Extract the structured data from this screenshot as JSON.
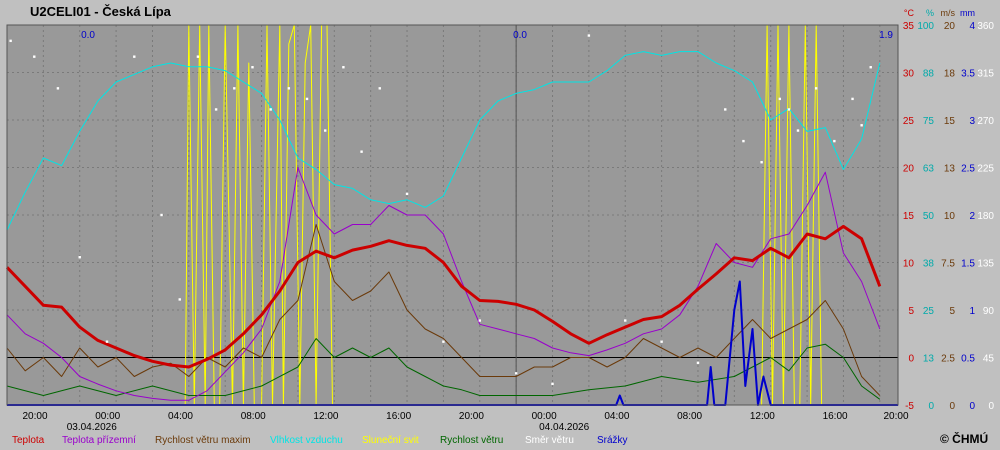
{
  "chart_data": {
    "type": "line",
    "title": "U2CELI01 - Česká Lípa",
    "copyright": "© ČHMÚ",
    "x_tick_labels": [
      "20:00",
      "00:00",
      "04:00",
      "08:00",
      "12:00",
      "16:00",
      "20:00",
      "00:00",
      "04:00",
      "08:00",
      "12:00",
      "16:00",
      "20:00"
    ],
    "x_date_labels": [
      "03.04.2026",
      "04.04.2026"
    ],
    "precip_totals": [
      "0.0",
      "0.0",
      "1.9"
    ],
    "axes": {
      "temperature": {
        "unit": "°C",
        "color": "#cc0000",
        "ticks": [
          "35",
          "30",
          "25",
          "20",
          "15",
          "10",
          "5",
          "0",
          "-5"
        ],
        "range": [
          -5,
          35
        ]
      },
      "humidity": {
        "unit": "%",
        "color": "#00aaaa",
        "ticks": [
          "100",
          "88",
          "75",
          "63",
          "50",
          "38",
          "25",
          "13",
          "0"
        ],
        "range": [
          0,
          100
        ]
      },
      "wind": {
        "unit": "m/s",
        "color": "#6b3a0a",
        "ticks": [
          "20",
          "18",
          "15",
          "13",
          "10",
          "7.5",
          "5",
          "2.5",
          "0"
        ],
        "range": [
          0,
          20
        ]
      },
      "precip": {
        "unit": "mm",
        "color": "#0000cc",
        "ticks": [
          "4",
          "3.5",
          "3",
          "2.5",
          "2",
          "1.5",
          "1",
          "0.5",
          "0"
        ],
        "range": [
          0,
          4
        ]
      },
      "direction": {
        "unit": "",
        "color": "#ffffff",
        "ticks": [
          "360",
          "315",
          "270",
          "225",
          "180",
          "135",
          "90",
          "45",
          "0"
        ],
        "range": [
          0,
          360
        ]
      }
    },
    "x_range_hours": [
      0,
      49
    ],
    "grid": true,
    "series": [
      {
        "name": "Teplota",
        "color": "#cc0000",
        "axis": "temperature",
        "width": 3,
        "x": [
          0,
          1,
          2,
          3,
          4,
          5,
          6,
          7,
          8,
          9,
          10,
          11,
          12,
          13,
          14,
          15,
          16,
          17,
          18,
          19,
          20,
          21,
          22,
          23,
          24,
          25,
          26,
          27,
          28,
          29,
          30,
          31,
          32,
          33,
          34,
          35,
          36,
          37,
          38,
          39,
          40,
          41,
          42,
          43,
          44,
          45,
          46,
          47,
          48
        ],
        "values": [
          9.5,
          7.5,
          5.5,
          5.3,
          3.2,
          1.8,
          1.0,
          0.2,
          -0.4,
          -0.8,
          -1.0,
          -0.2,
          0.8,
          2.5,
          4.5,
          7.0,
          10.0,
          11.2,
          10.5,
          11.3,
          11.7,
          12.3,
          11.8,
          11.5,
          10.0,
          7.5,
          6.0,
          5.9,
          5.6,
          5.0,
          3.8,
          2.5,
          1.5,
          2.4,
          3.2,
          4.0,
          4.3,
          5.5,
          7.2,
          8.8,
          10.5,
          10.2,
          11.5,
          10.5,
          13.0,
          12.5,
          13.8,
          12.5,
          7.5
        ]
      },
      {
        "name": "Teplota přízemní",
        "color": "#9900cc",
        "axis": "temperature",
        "width": 1,
        "x": [
          0,
          1,
          2,
          3,
          4,
          5,
          6,
          7,
          8,
          9,
          10,
          11,
          12,
          13,
          14,
          15,
          16,
          17,
          18,
          19,
          20,
          21,
          22,
          23,
          24,
          25,
          26,
          27,
          28,
          29,
          30,
          31,
          32,
          33,
          34,
          35,
          36,
          37,
          38,
          39,
          40,
          41,
          42,
          43,
          44,
          45,
          46,
          47,
          48
        ],
        "values": [
          4.5,
          2.5,
          1.5,
          0,
          -2.0,
          -2.8,
          -3.5,
          -4.0,
          -4.3,
          -4.5,
          -4.5,
          -3.5,
          -1.5,
          0.5,
          3.0,
          8.0,
          20.0,
          15.0,
          13.0,
          14.0,
          14.0,
          16.0,
          15.0,
          15.0,
          13.0,
          8.0,
          3.5,
          3.0,
          2.5,
          2.0,
          1.0,
          0.5,
          0.2,
          0.8,
          1.5,
          2.5,
          3.0,
          4.5,
          7.5,
          12.0,
          10.0,
          9.5,
          12.5,
          13.0,
          16.0,
          19.5,
          11.0,
          8.0,
          3.0
        ]
      },
      {
        "name": "Rychlost větru maxim",
        "color": "#6b3a0a",
        "axis": "wind",
        "width": 1,
        "x": [
          0,
          1,
          2,
          3,
          4,
          5,
          6,
          7,
          8,
          9,
          10,
          11,
          12,
          13,
          14,
          15,
          16,
          17,
          18,
          19,
          20,
          21,
          22,
          23,
          24,
          25,
          26,
          27,
          28,
          29,
          30,
          31,
          32,
          33,
          34,
          35,
          36,
          37,
          38,
          39,
          40,
          41,
          42,
          43,
          44,
          45,
          46,
          47,
          48
        ],
        "values": [
          3.0,
          1.8,
          2.5,
          1.5,
          3.0,
          2.0,
          2.5,
          1.5,
          2.0,
          2.2,
          1.5,
          2.5,
          2.0,
          3.0,
          2.5,
          4.5,
          5.5,
          9.5,
          6.5,
          5.5,
          6.0,
          7.0,
          5.0,
          4.0,
          3.5,
          2.5,
          1.5,
          1.5,
          1.5,
          2.0,
          2.0,
          2.5,
          2.5,
          2.0,
          2.5,
          3.5,
          3.0,
          2.5,
          3.0,
          2.5,
          3.5,
          4.5,
          3.5,
          4.0,
          4.5,
          5.5,
          4.0,
          1.5,
          0.5
        ]
      },
      {
        "name": "Vlhkost vzduchu",
        "color": "#00e5e5",
        "axis": "humidity",
        "width": 1,
        "x": [
          0,
          1,
          2,
          3,
          4,
          5,
          6,
          7,
          8,
          9,
          10,
          11,
          12,
          13,
          14,
          15,
          16,
          17,
          18,
          19,
          20,
          21,
          22,
          23,
          24,
          25,
          26,
          27,
          28,
          29,
          30,
          31,
          32,
          33,
          34,
          35,
          36,
          37,
          38,
          39,
          40,
          41,
          42,
          43,
          44,
          45,
          46,
          47,
          48
        ],
        "values": [
          46,
          56,
          65,
          63,
          72,
          80,
          85,
          87,
          89,
          90,
          89,
          89,
          88,
          85,
          82,
          75,
          65,
          62,
          58,
          57,
          54,
          53,
          54,
          52,
          55,
          65,
          75,
          80,
          82,
          83,
          85,
          85,
          85,
          88,
          92,
          93,
          92,
          93,
          93,
          90,
          88,
          85,
          75,
          78,
          72,
          73,
          62,
          70,
          90
        ]
      },
      {
        "name": "Sluneční svit",
        "color": "#ffff00",
        "axis": "percent",
        "width": 1,
        "x": [
          0,
          9.8,
          10.0,
          10.3,
          10.6,
          10.9,
          11.1,
          11.4,
          11.7,
          12.0,
          12.4,
          12.7,
          13.0,
          13.3,
          13.6,
          14.0,
          14.3,
          14.6,
          15.0,
          15.2,
          15.5,
          15.8,
          16.1,
          16.4,
          16.7,
          17.0,
          17.3,
          17.6,
          17.9,
          18.2,
          18.5,
          18.8,
          19.0,
          39.8,
          40.0,
          40.3,
          40.6,
          40.9,
          41.2,
          41.5,
          41.8,
          42.1,
          42.4,
          42.7,
          43.0,
          43.3,
          43.6,
          43.9,
          44.2,
          44.5,
          44.8,
          45.1,
          45.4,
          49
        ],
        "values": [
          0,
          0,
          100,
          0,
          100,
          0,
          100,
          0,
          0,
          100,
          0,
          100,
          0,
          90,
          0,
          0,
          100,
          0,
          100,
          0,
          95,
          100,
          0,
          90,
          100,
          0,
          100,
          100,
          0,
          0,
          0,
          0,
          0,
          0,
          0,
          0,
          0,
          0,
          0,
          0,
          100,
          0,
          100,
          0,
          100,
          0,
          0,
          100,
          0,
          100,
          0,
          0,
          0,
          0
        ]
      },
      {
        "name": "Rychlost větru",
        "color": "#006600",
        "axis": "wind",
        "width": 1,
        "x": [
          0,
          2,
          4,
          6,
          8,
          10,
          12,
          14,
          16,
          17,
          18,
          19,
          20,
          21,
          22,
          23,
          24,
          25,
          26,
          28,
          30,
          32,
          34,
          36,
          38,
          40,
          41,
          42,
          43,
          44,
          45,
          46,
          47,
          48
        ],
        "values": [
          1.0,
          0.5,
          1.0,
          0.5,
          1.0,
          0.5,
          0.5,
          1.0,
          2.0,
          3.5,
          2.5,
          3.0,
          2.5,
          3.0,
          2.0,
          1.5,
          1.0,
          0.8,
          0.5,
          0.5,
          0.5,
          0.8,
          1.0,
          1.5,
          1.2,
          1.5,
          2.0,
          2.5,
          1.8,
          3.0,
          3.2,
          2.5,
          1.0,
          0.3
        ]
      },
      {
        "name": "Směr větru",
        "color": "#ffffff",
        "axis": "direction",
        "width": 0,
        "x": [
          0.2,
          1.5,
          2.8,
          4.0,
          5.5,
          7.0,
          8.5,
          9.5,
          10.5,
          11.5,
          12.5,
          13.5,
          14.5,
          15.5,
          16.5,
          17.5,
          18.5,
          19.5,
          20.5,
          22.0,
          24.0,
          26.0,
          28.0,
          30.0,
          32.0,
          34.0,
          36.0,
          38.0,
          39.5,
          40.5,
          41.5,
          42.5,
          43.0,
          43.5,
          44.5,
          45.5,
          46.5,
          47.0,
          47.5
        ],
        "values": [
          345,
          330,
          300,
          140,
          60,
          330,
          180,
          100,
          330,
          280,
          300,
          320,
          280,
          300,
          290,
          260,
          320,
          240,
          300,
          200,
          60,
          80,
          30,
          20,
          350,
          80,
          60,
          40,
          280,
          250,
          230,
          290,
          280,
          260,
          300,
          250,
          290,
          265,
          320
        ]
      },
      {
        "name": "Srážky",
        "color": "#0000cc",
        "axis": "precip",
        "width": 2,
        "x": [
          0,
          33.5,
          33.7,
          33.9,
          38.5,
          38.7,
          38.9,
          39.5,
          40.0,
          40.3,
          40.6,
          41.0,
          41.3,
          41.6,
          42.0,
          49
        ],
        "values": [
          0,
          0,
          0.1,
          0,
          0,
          0.4,
          0,
          0,
          1.0,
          1.3,
          0.2,
          0.8,
          0,
          0.3,
          0,
          0
        ]
      }
    ],
    "legend": [
      "Teplota",
      "Teplota přízemní",
      "Rychlost větru maxim",
      "Vlhkost vzduchu",
      "Sluneční svit",
      "Rychlost větru",
      "Směr větru",
      "Srážky"
    ],
    "legend_colors": [
      "#cc0000",
      "#9900cc",
      "#6b3a0a",
      "#00e5e5",
      "#ffff00",
      "#006600",
      "#ffffff",
      "#0000cc"
    ]
  }
}
